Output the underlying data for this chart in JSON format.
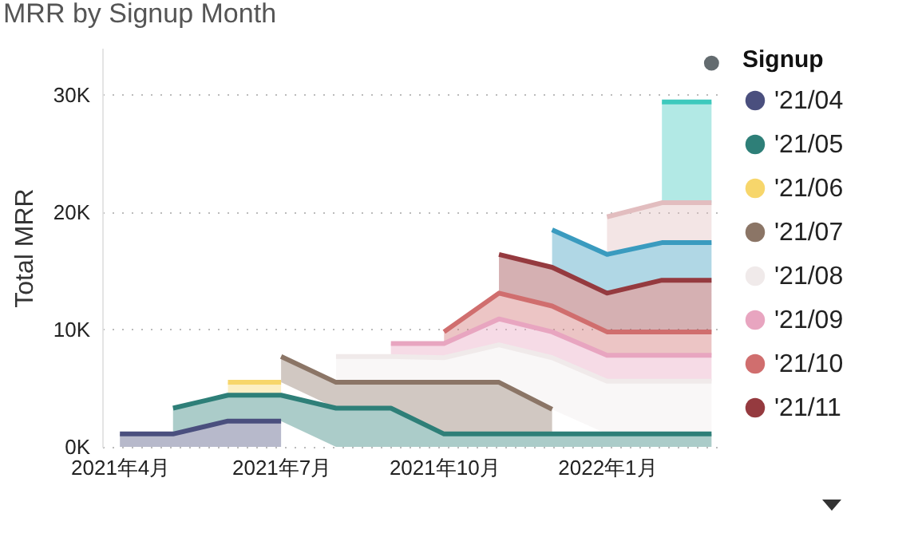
{
  "chart_data": {
    "type": "area",
    "stacked": true,
    "title": "MRR by Signup Month",
    "ylabel": "Total MRR",
    "legend_title": "Signup",
    "legend": "right",
    "grid": "y",
    "x": [
      "2021-04",
      "2021-05",
      "2021-06",
      "2021-07",
      "2021-08",
      "2021-09",
      "2021-10",
      "2021-11",
      "2021-12",
      "2022-01",
      "2022-02",
      "2022-03"
    ],
    "xlim": [
      "2021-03-22",
      "2022-03-04"
    ],
    "xticks": [
      {
        "value": "2021-04",
        "label": "2021年4月"
      },
      {
        "value": "2021-07",
        "label": "2021年7月"
      },
      {
        "value": "2021-10",
        "label": "2021年10月"
      },
      {
        "value": "2022-01",
        "label": "2022年1月"
      }
    ],
    "ylim": [
      0,
      34000
    ],
    "yticks": [
      {
        "value": 0,
        "label": "0K"
      },
      {
        "value": 10000,
        "label": "10K"
      },
      {
        "value": 20000,
        "label": "20K"
      },
      {
        "value": 30000,
        "label": "30K"
      }
    ],
    "series": [
      {
        "name": "'21/04",
        "color": "#4a4f7e",
        "values": [
          1100,
          1100,
          2200,
          2200,
          null,
          null,
          null,
          null,
          null,
          null,
          null,
          null
        ]
      },
      {
        "name": "'21/05",
        "color": "#2e7f78",
        "values": [
          null,
          2200,
          2200,
          2200,
          3300,
          3300,
          1100,
          1100,
          1100,
          1100,
          1100,
          1100
        ]
      },
      {
        "name": "'21/06",
        "color": "#f7d66b",
        "values": [
          null,
          null,
          1100,
          1100,
          null,
          null,
          null,
          null,
          null,
          null,
          null,
          null
        ]
      },
      {
        "name": "'21/07",
        "color": "#8b7566",
        "values": [
          null,
          null,
          null,
          2200,
          2200,
          2200,
          4400,
          4400,
          2100,
          null,
          null,
          null
        ]
      },
      {
        "name": "'21/08",
        "color": "#f0eaea",
        "values": [
          null,
          null,
          null,
          null,
          2200,
          2200,
          2100,
          3200,
          4400,
          4500,
          4500,
          4500
        ]
      },
      {
        "name": "'21/09",
        "color": "#e8a5c0",
        "values": [
          null,
          null,
          null,
          null,
          null,
          1100,
          1200,
          2200,
          2200,
          2200,
          2200,
          2200
        ]
      },
      {
        "name": "'21/10",
        "color": "#d06e6e",
        "values": [
          null,
          null,
          null,
          null,
          null,
          null,
          1000,
          2200,
          2200,
          2000,
          2000,
          2000
        ]
      },
      {
        "name": "'21/11",
        "color": "#953a3f",
        "values": [
          null,
          null,
          null,
          null,
          null,
          null,
          null,
          3300,
          3300,
          3300,
          4400,
          4400
        ]
      },
      {
        "color": "#3a9bbf",
        "values": [
          null,
          null,
          null,
          null,
          null,
          null,
          null,
          null,
          3200,
          3300,
          3200,
          3200
        ]
      },
      {
        "color": "#e2bdbf",
        "values": [
          null,
          null,
          null,
          null,
          null,
          null,
          null,
          null,
          null,
          3200,
          3400,
          3400
        ]
      },
      {
        "color": "#3ec9bd",
        "values": [
          null,
          null,
          null,
          null,
          null,
          null,
          null,
          null,
          null,
          null,
          8600,
          8600
        ]
      },
      {
        "type": "scatter",
        "color": "#636b6f",
        "values": [
          null,
          null,
          null,
          null,
          null,
          null,
          null,
          null,
          null,
          null,
          null,
          32700
        ]
      }
    ]
  }
}
